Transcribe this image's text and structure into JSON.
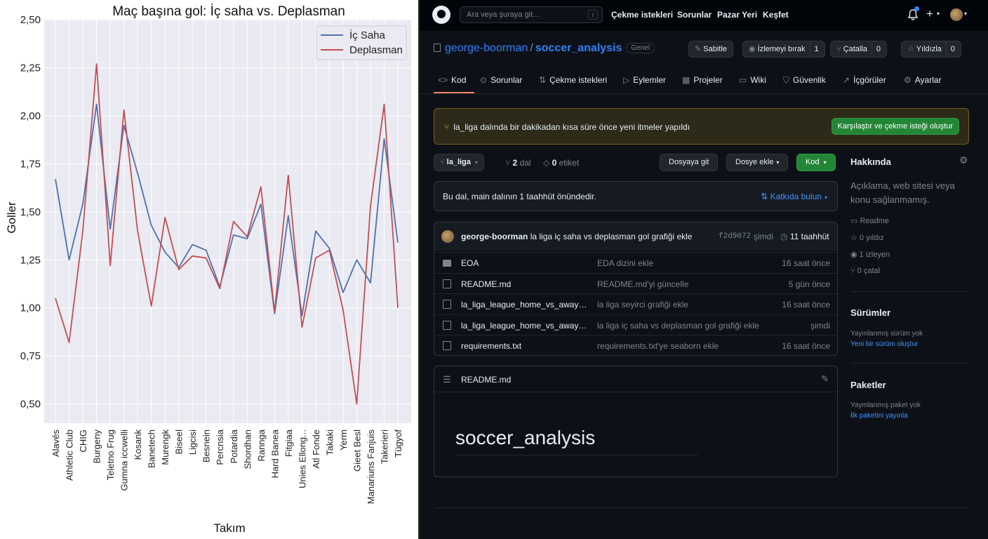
{
  "chart_data": {
    "type": "line",
    "title": "Maç başına gol: İç saha vs. Deplasman",
    "xlabel": "Takım",
    "ylabel": "Goller",
    "ylim": [
      0.4,
      2.5
    ],
    "yticks": [
      "0,50",
      "0,75",
      "1,00",
      "1,25",
      "1,50",
      "1,75",
      "2,00",
      "2,25",
      "2,50"
    ],
    "ytick_values": [
      0.5,
      0.75,
      1.0,
      1.25,
      1.5,
      1.75,
      2.0,
      2.25,
      2.5
    ],
    "grid": true,
    "legend": "top-right",
    "categories": [
      "Alavés",
      "Athletic Club",
      "CHIG",
      "Burgeny",
      "Teletno Frug",
      "Gumna iccwelli",
      "Kosank",
      "Banetech",
      "Murengk",
      "Biseel",
      "Ligcisi",
      "Besnein",
      "Percnsia",
      "Potardia",
      "Shordhan",
      "Rannga",
      "Hard Banea",
      "Fitgiaa",
      "Unies Ellong...",
      "Atl Fonde",
      "Takaki",
      "Yerm",
      "Gieet Besl",
      "Manariuns Fanjuis",
      "Takerieri",
      "Tügyof"
    ],
    "series": [
      {
        "name": "İç Saha",
        "color": "#4c72b0",
        "values": [
          1.67,
          1.25,
          1.54,
          2.06,
          1.41,
          1.95,
          1.7,
          1.43,
          1.29,
          1.21,
          1.33,
          1.3,
          1.11,
          1.38,
          1.36,
          1.54,
          0.97,
          1.48,
          0.96,
          1.4,
          1.31,
          1.08,
          1.25,
          1.13,
          1.88,
          1.34
        ]
      },
      {
        "name": "Deplasman",
        "color": "#c44e52",
        "values": [
          1.05,
          0.82,
          1.4,
          2.27,
          1.22,
          2.03,
          1.4,
          1.01,
          1.47,
          1.2,
          1.27,
          1.26,
          1.1,
          1.45,
          1.37,
          1.63,
          0.98,
          1.69,
          0.9,
          1.26,
          1.3,
          0.99,
          0.5,
          1.53,
          2.06,
          1.0
        ]
      }
    ]
  },
  "github": {
    "search_placeholder": "Ara veya şuraya git...",
    "search_kbd": "/",
    "topnav": [
      "Çekme istekleri",
      "Sorunlar",
      "Pazar Yeri",
      "Keşfet"
    ],
    "owner": "george-boorman",
    "repo": "soccer_analysis",
    "visibility": "Genel",
    "pin": "Sabitle",
    "unwatch": "İzlemeyi bırak",
    "unwatch_count": "1",
    "fork": "Çatalla",
    "fork_count": "0",
    "star": "Yıldızla",
    "star_count": "0",
    "tabs": [
      "Kod",
      "Sorunlar",
      "Çekme istekleri",
      "Eylemler",
      "Projeler",
      "Wiki",
      "Güvenlik",
      "İçgörüler",
      "Ayarlar"
    ],
    "banner_text": "la_liga dalında bir dakikadan kısa süre önce yeni itmeler yapıldı",
    "banner_button": "Karşılaştır ve çekme isteği oluştur",
    "branch": "la_liga",
    "branch_count": "2",
    "branch_label": "dal",
    "tag_count": "0",
    "tag_label": "etiket",
    "goto_file": "Dosyaya git",
    "add_file": "Dosye ekle",
    "code_button": "Kod",
    "ahead_text": "Bu dal, main dalının 1 taahhüt önündedir.",
    "contribute": "Katkıda bulun",
    "commit_author": "george-boorman",
    "commit_message": "la liga iç saha vs deplasman gol grafiği ekle",
    "commit_hash": "f2d9072",
    "commit_time": "şimdi",
    "commit_count": "11 taahhüt",
    "files": [
      {
        "name": "EOA",
        "message": "EDA dizini ekle",
        "time": "16 saat önce"
      },
      {
        "name": "README.md",
        "message": "README.md'yi güncelle",
        "time": "5 gün önce"
      },
      {
        "name": "la_liga_league_home_vs_away_att...",
        "message": "la liga seyirci grafiği ekle",
        "time": "16 saat önce"
      },
      {
        "name": "la_liga_league_home_vs_away_goa...",
        "message": "la liga iç saha vs deplasman gol grafiği ekle",
        "time": "şimdi"
      },
      {
        "name": "requirements.txt",
        "message": "requirements.txt'ye seaborn ekle",
        "time": "16 saat önce"
      }
    ],
    "readme_title": "README.md",
    "readme_heading": "soccer_analysis",
    "about_title": "Hakkında",
    "about_text": "Açıklama, web sitesi veya konu sağlanmamış.",
    "about_items": [
      "Readme",
      "0 yıldız",
      "1 izleyen",
      "0 çatal"
    ],
    "releases_title": "Sürümler",
    "releases_text": "Yayınlanmış sürüm yok",
    "releases_link": "Yeni bir sürüm oluştur",
    "packages_title": "Paketler",
    "packages_text": "Yaymlanmış paket yok",
    "packages_link": "İlk paketini yayınla"
  }
}
